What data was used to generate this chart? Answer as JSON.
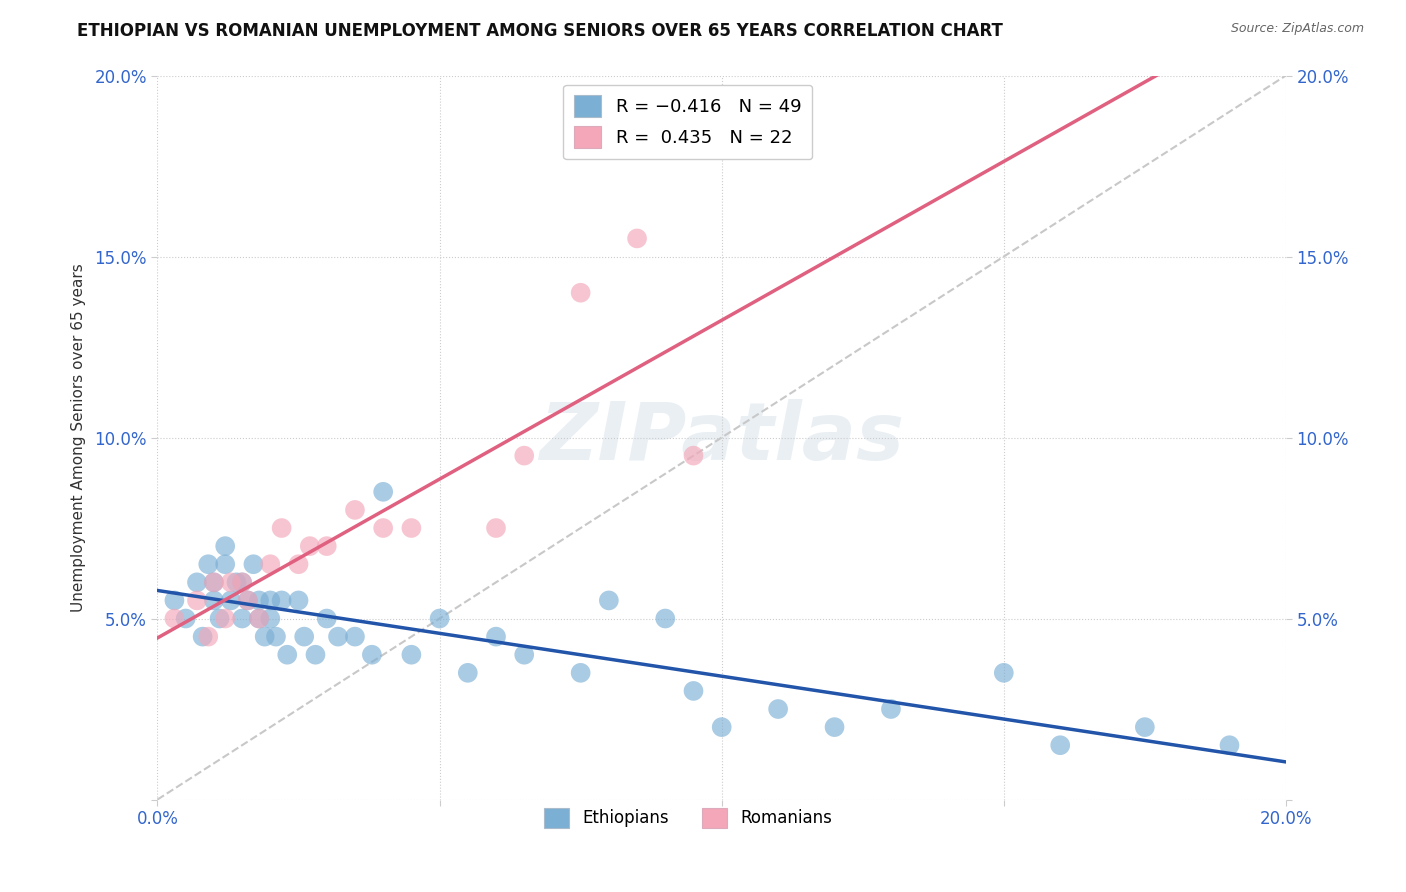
{
  "title": "ETHIOPIAN VS ROMANIAN UNEMPLOYMENT AMONG SENIORS OVER 65 YEARS CORRELATION CHART",
  "source": "Source: ZipAtlas.com",
  "ylabel": "Unemployment Among Seniors over 65 years",
  "xlabel": "",
  "xlim": [
    0,
    0.2
  ],
  "ylim": [
    0,
    0.2
  ],
  "xticks": [
    0.0,
    0.05,
    0.1,
    0.15,
    0.2
  ],
  "yticks": [
    0.0,
    0.05,
    0.1,
    0.15,
    0.2
  ],
  "xticklabels_left": [
    "0.0%",
    "",
    "",
    "",
    "20.0%"
  ],
  "yticklabels_left": [
    "",
    "5.0%",
    "10.0%",
    "15.0%",
    "20.0%"
  ],
  "yticklabels_right": [
    "",
    "5.0%",
    "10.0%",
    "15.0%",
    "20.0%"
  ],
  "legend_eth": "R = -0.416   N = 49",
  "legend_rom": "R =  0.435   N = 22",
  "color_eth": "#7BAFD4",
  "color_rom": "#F4A7B9",
  "line_color_eth": "#2255AA",
  "line_color_rom": "#E06080",
  "line_color_dash": "#C8C8C8",
  "watermark_text": "ZIPatlas",
  "ethiopians_x": [
    0.003,
    0.005,
    0.007,
    0.008,
    0.009,
    0.01,
    0.01,
    0.011,
    0.012,
    0.012,
    0.013,
    0.014,
    0.015,
    0.015,
    0.016,
    0.017,
    0.018,
    0.018,
    0.019,
    0.02,
    0.02,
    0.021,
    0.022,
    0.023,
    0.025,
    0.026,
    0.028,
    0.03,
    0.032,
    0.035,
    0.038,
    0.04,
    0.045,
    0.05,
    0.055,
    0.06,
    0.065,
    0.075,
    0.08,
    0.09,
    0.095,
    0.1,
    0.11,
    0.12,
    0.13,
    0.15,
    0.16,
    0.175,
    0.19
  ],
  "ethiopians_y": [
    0.055,
    0.05,
    0.06,
    0.045,
    0.065,
    0.055,
    0.06,
    0.05,
    0.065,
    0.07,
    0.055,
    0.06,
    0.05,
    0.06,
    0.055,
    0.065,
    0.05,
    0.055,
    0.045,
    0.05,
    0.055,
    0.045,
    0.055,
    0.04,
    0.055,
    0.045,
    0.04,
    0.05,
    0.045,
    0.045,
    0.04,
    0.085,
    0.04,
    0.05,
    0.035,
    0.045,
    0.04,
    0.035,
    0.055,
    0.05,
    0.03,
    0.02,
    0.025,
    0.02,
    0.025,
    0.035,
    0.015,
    0.02,
    0.015
  ],
  "romanians_x": [
    0.003,
    0.007,
    0.009,
    0.01,
    0.012,
    0.013,
    0.015,
    0.016,
    0.018,
    0.02,
    0.022,
    0.025,
    0.027,
    0.03,
    0.035,
    0.04,
    0.045,
    0.06,
    0.065,
    0.075,
    0.085,
    0.095
  ],
  "romanians_y": [
    0.05,
    0.055,
    0.045,
    0.06,
    0.05,
    0.06,
    0.06,
    0.055,
    0.05,
    0.065,
    0.075,
    0.065,
    0.07,
    0.07,
    0.08,
    0.075,
    0.075,
    0.075,
    0.095,
    0.14,
    0.155,
    0.095
  ]
}
